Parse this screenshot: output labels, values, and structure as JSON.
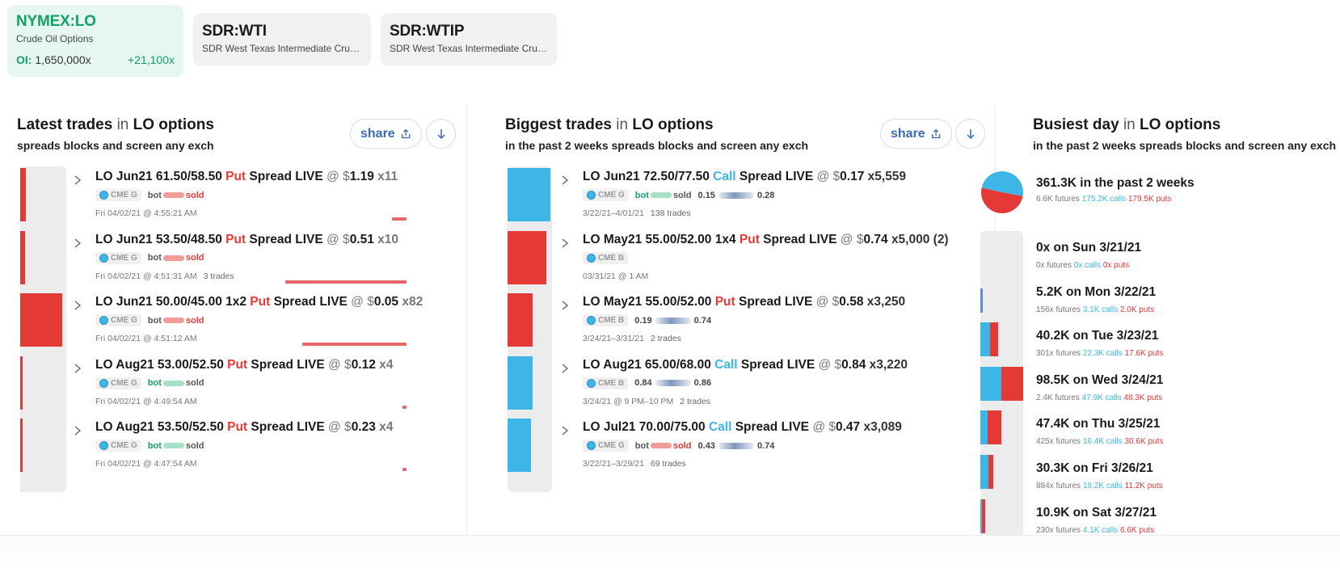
{
  "cards": [
    {
      "symbol": "NYMEX:LO",
      "desc": "Crude Oil Options",
      "oi_label": "OI:",
      "oi_value": "1,650,000x",
      "oi_change": "+21,100x"
    },
    {
      "symbol": "SDR:WTI",
      "desc": "SDR West Texas Intermediate Crud..."
    },
    {
      "symbol": "SDR:WTIP",
      "desc": "SDR West Texas Intermediate Crud..."
    }
  ],
  "latest": {
    "title_bold": "Latest trades",
    "title_light": "in",
    "title_tail": "LO options",
    "subtitle": "spreads blocks and screen any exch",
    "share_label": "share",
    "trades": [
      {
        "pre": "LO Jun21 61.50/58.50 ",
        "type": "Put",
        "post": " Spread LIVE ",
        "at": "@ $",
        "price": "1.19",
        "qty": "x11",
        "exch": "CME G",
        "bot": "bot",
        "sold": "sold",
        "time": "Fri 04/02/21 @ 4:55:21 AM",
        "extra": "",
        "bar_fraction": 0.13
      },
      {
        "pre": "LO Jun21 53.50/48.50 ",
        "type": "Put",
        "post": " Spread LIVE ",
        "at": "@ $",
        "price": "0.51",
        "qty": "x10",
        "exch": "CME G",
        "bot": "bot",
        "sold": "sold",
        "time": "Fri 04/02/21 @ 4:51:31 AM",
        "extra": "3 trades",
        "bar_fraction": 0.12
      },
      {
        "pre": "LO Jun21 50.00/45.00 1x2 ",
        "type": "Put",
        "post": " Spread LIVE ",
        "at": "@ $",
        "price": "0.05",
        "qty": "x82",
        "exch": "CME G",
        "bot": "bot",
        "sold": "sold",
        "time": "Fri 04/02/21 @ 4:51:12 AM",
        "extra": "",
        "bar_fraction": 1.0
      },
      {
        "pre": "LO Aug21 53.00/52.50 ",
        "type": "Put",
        "post": " Spread LIVE ",
        "at": "@ $",
        "price": "0.12",
        "qty": "x4",
        "exch": "CME G",
        "bot": "bot",
        "sold": "sold",
        "time": "Fri 04/02/21 @ 4:49:54 AM",
        "extra": "",
        "bar_fraction": 0.05
      },
      {
        "pre": "LO Aug21 53.50/52.50 ",
        "type": "Put",
        "post": " Spread LIVE ",
        "at": "@ $",
        "price": "0.23",
        "qty": "x4",
        "exch": "CME G",
        "bot": "bot",
        "sold": "sold",
        "time": "Fri 04/02/21 @ 4:47:54 AM",
        "extra": "",
        "bar_fraction": 0.05
      }
    ]
  },
  "biggest": {
    "title_bold": "Biggest trades",
    "title_light": "in",
    "title_tail": "LO options",
    "subtitle": "in the past 2 weeks spreads blocks and screen any exch",
    "share_label": "share",
    "trades": [
      {
        "pre": "LO Jun21 72.50/77.50 ",
        "type": "Call",
        "post": " Spread LIVE ",
        "at": "@ $",
        "price": "0.17",
        "qty": "x5,559",
        "exch": "CME G",
        "bot": "bot",
        "sold": "sold",
        "range_lo": "0.15",
        "range_hi": "0.28",
        "time": "3/22/21–4/01/21",
        "extra": "138 trades",
        "bar_fraction": 1.0
      },
      {
        "pre": "LO May21 55.00/52.00 1x4 ",
        "type": "Put",
        "post": " Spread LIVE ",
        "at": "@ $",
        "price": "0.74",
        "qty": "x5,000 (2)",
        "exch": "CME B",
        "bot": "",
        "sold": "",
        "range_lo": "",
        "range_hi": "",
        "time": "03/31/21 @ 1 AM",
        "extra": "",
        "bar_fraction": 0.9
      },
      {
        "pre": "LO May21 55.00/52.00 ",
        "type": "Put",
        "post": " Spread LIVE ",
        "at": "@ $",
        "price": "0.58",
        "qty": "x3,250",
        "exch": "CME B",
        "bot": "",
        "sold": "",
        "range_lo": "0.19",
        "range_hi": "0.74",
        "time": "3/24/21–3/31/21",
        "extra": "2 trades",
        "bar_fraction": 0.58
      },
      {
        "pre": "LO Aug21 65.00/68.00 ",
        "type": "Call",
        "post": " Spread LIVE ",
        "at": "@ $",
        "price": "0.84",
        "qty": "x3,220",
        "exch": "CME B",
        "bot": "",
        "sold": "",
        "range_lo": "0.84",
        "range_hi": "0.86",
        "time": "3/24/21 @ 9 PM–10 PM",
        "extra": "2 trades",
        "bar_fraction": 0.58
      },
      {
        "pre": "LO Jul21 70.00/75.00 ",
        "type": "Call",
        "post": " Spread LIVE ",
        "at": "@ $",
        "price": "0.47",
        "qty": "x3,089",
        "exch": "CME G",
        "bot": "bot",
        "sold": "sold",
        "range_lo": "0.43",
        "range_hi": "0.74",
        "time": "3/22/21–3/29/21",
        "extra": "69 trades",
        "bar_fraction": 0.55
      }
    ]
  },
  "busiest": {
    "title_bold": "Busiest day",
    "title_light": "in",
    "title_tail": "LO options",
    "subtitle": "in the past 2 weeks spreads blocks and screen any exch",
    "summary": {
      "total": "361.3K in the past 2 weeks",
      "futures": "6.6K futures",
      "calls": "175.2K calls",
      "puts": "179.5K puts",
      "call_fraction": 0.494
    },
    "days": [
      {
        "label": "0x on Sun 3/21/21",
        "futures": "0x futures",
        "calls": "0x calls",
        "puts": "0x puts",
        "calls_k": 0,
        "puts_k": 0
      },
      {
        "label": "5.2K on Mon 3/22/21",
        "futures": "156x futures",
        "calls": "3.1K calls",
        "puts": "2.0K puts",
        "calls_k": 3.1,
        "puts_k": 2.0
      },
      {
        "label": "40.2K on Tue 3/23/21",
        "futures": "301x futures",
        "calls": "22.3K calls",
        "puts": "17.6K puts",
        "calls_k": 22.3,
        "puts_k": 17.6
      },
      {
        "label": "98.5K on Wed 3/24/21",
        "futures": "2.4K futures",
        "calls": "47.9K calls",
        "puts": "48.3K puts",
        "calls_k": 47.9,
        "puts_k": 48.3
      },
      {
        "label": "47.4K on Thu 3/25/21",
        "futures": "425x futures",
        "calls": "16.4K calls",
        "puts": "30.6K puts",
        "calls_k": 16.4,
        "puts_k": 30.6
      },
      {
        "label": "30.3K on Fri 3/26/21",
        "futures": "884x futures",
        "calls": "18.2K calls",
        "puts": "11.2K puts",
        "calls_k": 18.2,
        "puts_k": 11.2
      },
      {
        "label": "10.9K on Sat 3/27/21",
        "futures": "230x futures",
        "calls": "4.1K calls",
        "puts": "6.6K puts",
        "calls_k": 4.1,
        "puts_k": 6.6
      }
    ]
  },
  "colors": {
    "put": "#e53935",
    "call": "#3db5e6",
    "accent": "#14a06a",
    "link": "#3b6bb5"
  },
  "icons": {
    "share": "share-icon",
    "download": "download-icon",
    "chevron": "chevron-right-icon",
    "globe": "globe-icon"
  }
}
